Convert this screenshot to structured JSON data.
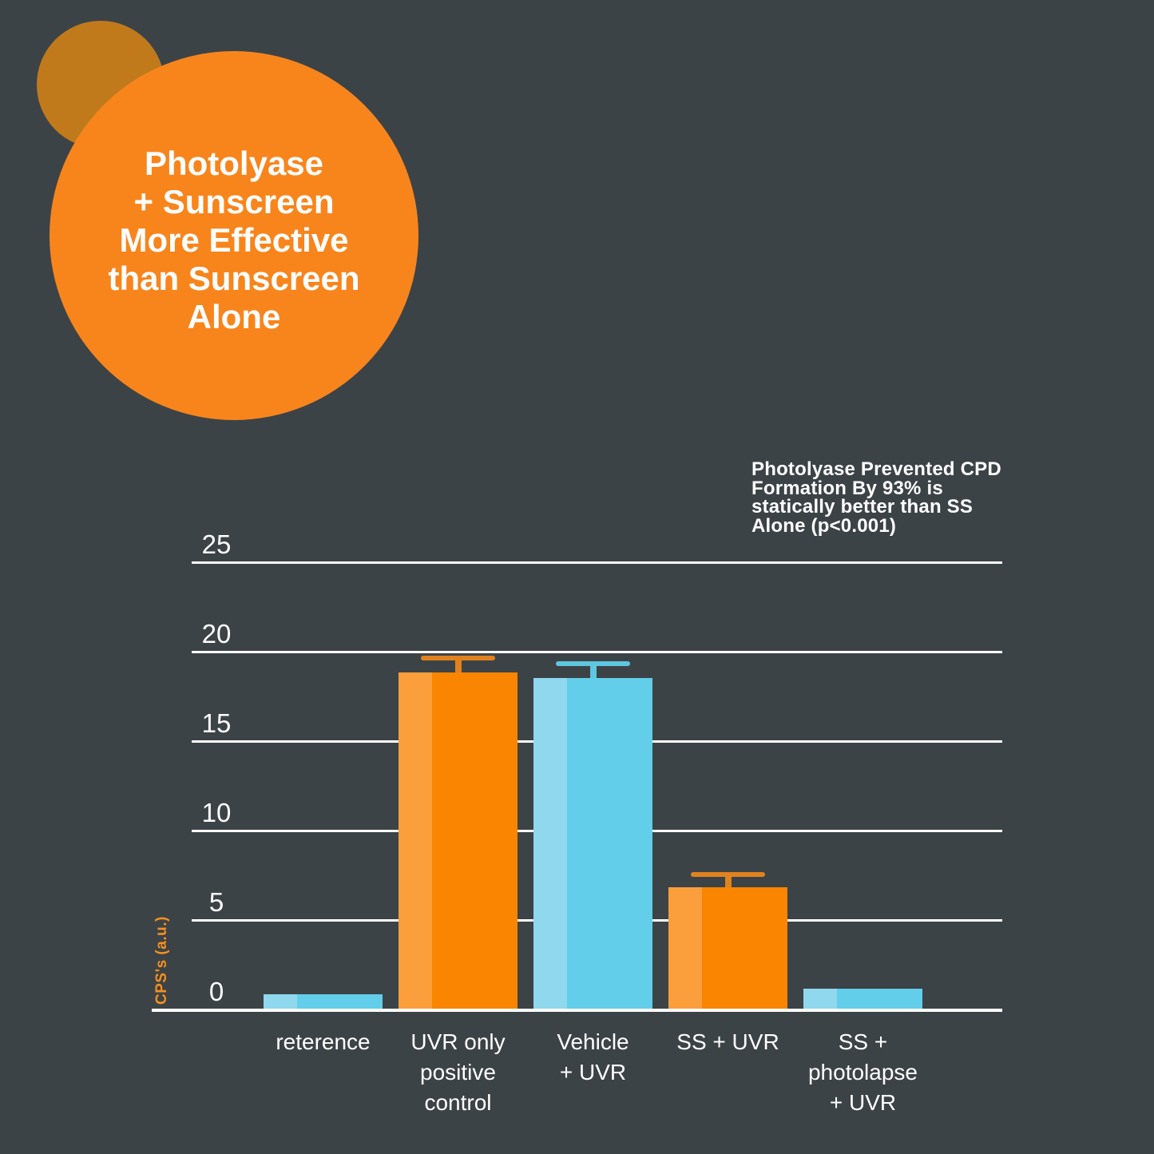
{
  "background_color": "#3C4347",
  "badge": {
    "circle_color": "#F8851C",
    "accent_circle_color": "#C07A1C",
    "text": "Photolyase\n+ Sunscreen\nMore Effective\nthan Sunscreen\nAlone",
    "text_color": "#FFFFFF"
  },
  "annotation": {
    "text": "Photolyase Prevented CPD\nFormation By 93% is\nstatically better than SS\nAlone (p<0.001)",
    "text_color": "#FFFFFF"
  },
  "chart_data": {
    "type": "bar",
    "title": "Photolyase + Sunscreen More Effective than Sunscreen Alone",
    "categories": [
      "reterence",
      "UVR only\npositive\ncontrol",
      "Vehicle\n+ UVR",
      "SS + UVR",
      "SS +\nphotolapse\n+ UVR"
    ],
    "values": [
      0.8,
      18.8,
      18.5,
      6.8,
      1.1
    ],
    "errors": [
      null,
      0.8,
      0.8,
      0.7,
      null
    ],
    "bar_colors": [
      "blue",
      "orange",
      "blue",
      "orange",
      "blue"
    ],
    "xlabel": "",
    "ylabel": "CPS's (a.u.)",
    "ylim": [
      0,
      25
    ],
    "yticks": [
      0,
      5,
      10,
      15,
      20,
      25
    ],
    "grid": true,
    "legend": null,
    "annotation": "Photolyase Prevented CPD Formation By 93% is statically better than SS Alone (p<0.001)",
    "colors": {
      "orange_main": "#F98501",
      "orange_light": "#FB9E3C",
      "orange_error": "#E0821E",
      "blue_main": "#63CEE9",
      "blue_light": "#8FD8EE",
      "blue_error": "#5FC6DF",
      "gridline": "#FFFFFF",
      "tick_label": "#FFFFFF",
      "category_label": "#FFFFFF",
      "ylabel_color": "#F6901E"
    }
  }
}
